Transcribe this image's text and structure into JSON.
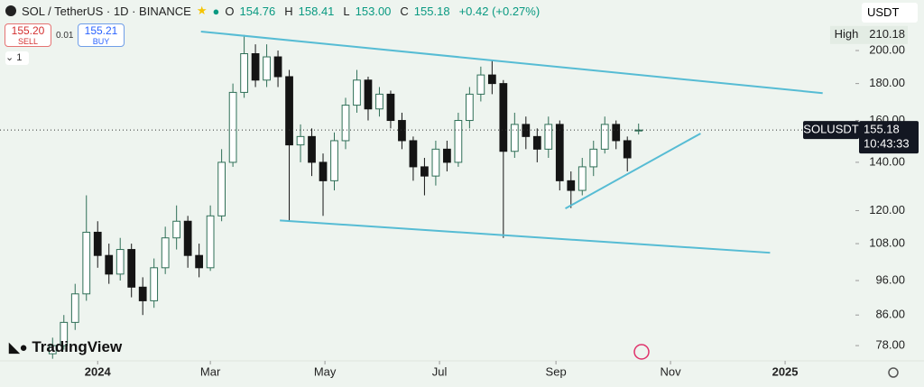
{
  "header": {
    "symbol": "SOL / TetherUS · 1D · BINANCE",
    "keys": [
      "O",
      "H",
      "L",
      "C"
    ],
    "values": [
      "154.76",
      "158.41",
      "153.00",
      "155.18"
    ],
    "change": "+0.42 (+0.27%)"
  },
  "trade": {
    "sell_price": "155.20",
    "sell_label": "SELL",
    "spread": "0.01",
    "buy_price": "155.21",
    "buy_label": "BUY",
    "indicator_count": "1"
  },
  "watermark": "TradingView",
  "chart_data": {
    "type": "candlestick",
    "log_scale": true,
    "currency": "USDT",
    "up_color": "#2f6f57",
    "down_color": "#141414",
    "line_color": "#56bcd4",
    "x": [
      -24,
      -18,
      -12,
      -6,
      0,
      6,
      12,
      18,
      24,
      30,
      36,
      42,
      48,
      54,
      60,
      66,
      72,
      78,
      84,
      90,
      96,
      102,
      108,
      114,
      120,
      126,
      132,
      138,
      144,
      150,
      156,
      162,
      168,
      174,
      180,
      186,
      192,
      198,
      204,
      210,
      216,
      222,
      228,
      234,
      240,
      246,
      252,
      258,
      264,
      270,
      276,
      282,
      288
    ],
    "open": [
      76,
      78,
      84,
      92,
      112,
      104,
      98,
      106,
      94,
      90,
      100,
      110,
      116,
      104,
      100,
      118,
      140,
      175,
      198,
      182,
      196,
      184,
      148,
      152,
      140,
      132,
      150,
      168,
      182,
      166,
      174,
      160,
      150,
      138,
      134,
      146,
      140,
      160,
      174,
      185,
      180,
      145,
      158,
      152,
      146,
      158,
      132,
      128,
      138,
      146,
      158,
      150,
      154.76
    ],
    "high": [
      80,
      86,
      95,
      126,
      116,
      108,
      110,
      108,
      97,
      103,
      114,
      122,
      118,
      108,
      122,
      146,
      180,
      210.18,
      204,
      204,
      200,
      188,
      158,
      156,
      144,
      154,
      172,
      188,
      184,
      178,
      176,
      164,
      152,
      142,
      150,
      150,
      164,
      178,
      190,
      194,
      182,
      164,
      162,
      156,
      162,
      160,
      136,
      142,
      150,
      162,
      160,
      152,
      158.41
    ],
    "low": [
      74.8,
      77,
      82,
      90,
      100,
      95,
      96,
      91,
      86,
      88,
      98,
      106,
      100,
      97,
      99,
      116,
      138,
      172,
      178,
      178,
      178,
      116,
      140,
      134,
      118,
      128,
      146,
      164,
      160,
      162,
      156,
      146,
      132,
      126,
      130,
      136,
      138,
      156,
      170,
      174,
      110,
      142,
      146,
      140,
      142,
      128,
      121,
      126,
      134,
      144,
      146,
      136,
      153
    ],
    "close": [
      78,
      84,
      92,
      112,
      104,
      98,
      106,
      94,
      90,
      100,
      110,
      116,
      104,
      100,
      118,
      140,
      175,
      198,
      182,
      196,
      184,
      148,
      152,
      140,
      132,
      150,
      168,
      182,
      166,
      174,
      160,
      150,
      138,
      134,
      146,
      140,
      160,
      174,
      185,
      180,
      145,
      158,
      152,
      146,
      158,
      132,
      128,
      138,
      146,
      158,
      150,
      142,
      155.18
    ],
    "xlim": [
      -52,
      402
    ],
    "xticks": [
      {
        "value": 0,
        "label": "2024"
      },
      {
        "value": 60,
        "label": "Mar"
      },
      {
        "value": 121,
        "label": "May"
      },
      {
        "value": 182,
        "label": "Jul"
      },
      {
        "value": 244,
        "label": "Sep"
      },
      {
        "value": 305,
        "label": "Nov"
      },
      {
        "value": 366,
        "label": "2025"
      }
    ],
    "ylim": [
      74.3,
      235
    ],
    "yticks": [
      {
        "value": 78,
        "label": "78.00"
      },
      {
        "value": 86,
        "label": "86.00"
      },
      {
        "value": 96,
        "label": "96.00"
      },
      {
        "value": 108,
        "label": "108.00"
      },
      {
        "value": 120,
        "label": "120.00"
      },
      {
        "value": 140,
        "label": "140.00"
      },
      {
        "value": 160,
        "label": "160.00"
      },
      {
        "value": 180,
        "label": "180.00"
      },
      {
        "value": 200,
        "label": "200.00"
      }
    ],
    "trendlines": [
      {
        "points": [
          [
            55,
            212.5
          ],
          [
            386,
            174.6
          ]
        ]
      },
      {
        "points": [
          [
            97,
            116.3
          ],
          [
            358,
            104.9
          ]
        ]
      },
      {
        "points": [
          [
            249,
            120.8
          ],
          [
            321,
            153.5
          ]
        ]
      }
    ],
    "high_marker": {
      "label": "High",
      "value": 210.18
    },
    "last_price": {
      "symbol": "SOLUSDT",
      "value": 155.18,
      "countdown": "10:43:33"
    }
  }
}
